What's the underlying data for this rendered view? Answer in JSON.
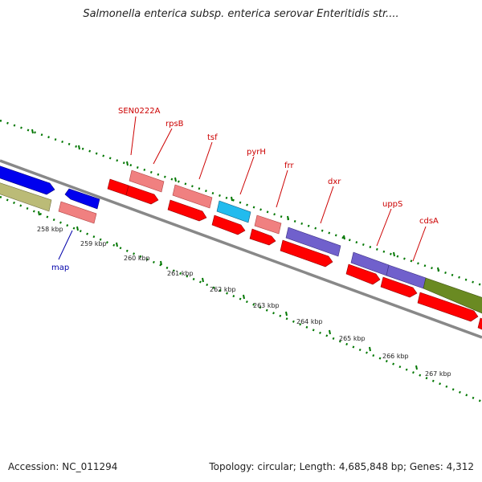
{
  "title": "Salmonella enterica subsp. enterica serovar Enteritidis str....",
  "footer": {
    "accession": "Accession: NC_011294",
    "stats": "Topology: circular; Length: 4,685,848 bp; Genes: 4,312"
  },
  "colors": {
    "red": "#ff0000",
    "pink": "#f08080",
    "blue": "#0000ee",
    "cyan": "#22bbee",
    "purple": "#7060cc",
    "olive": "#bbbb77",
    "green": "#6a8a22",
    "label_red": "#cc0000",
    "label_blue": "#0000aa",
    "tick_green": "#007700",
    "backbone": "#888888"
  },
  "gene_labels": [
    "SEN0222A",
    "rpsB",
    "tsf",
    "pyrH",
    "frr",
    "dxr",
    "uppS",
    "cdsA",
    "map"
  ],
  "scale_labels": [
    "258 kbp",
    "259 kbp",
    "260 kbp",
    "261 kbp",
    "262 kbp",
    "263 kbp",
    "264 kbp",
    "265 kbp",
    "266 kbp",
    "267 kbp"
  ]
}
